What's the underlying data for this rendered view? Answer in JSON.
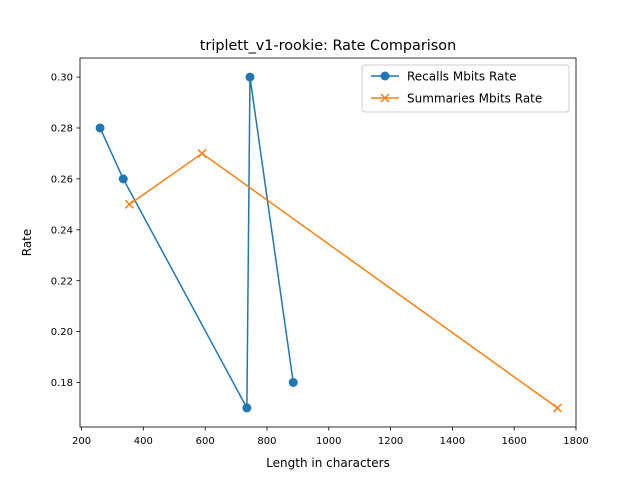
{
  "chart_data": {
    "type": "line",
    "title": "triplett_v1-rookie: Rate Comparison",
    "xlabel": "Length in characters",
    "ylabel": "Rate",
    "xlim": [
      195,
      1800
    ],
    "ylim": [
      0.1625,
      0.3075
    ],
    "xticks": [
      200,
      400,
      600,
      800,
      1000,
      1200,
      1400,
      1600,
      1800
    ],
    "yticks": [
      0.18,
      0.2,
      0.22,
      0.24,
      0.26,
      0.28,
      0.3
    ],
    "xtick_labels": [
      "200",
      "400",
      "600",
      "800",
      "1000",
      "1200",
      "1400",
      "1600",
      "1800"
    ],
    "ytick_labels": [
      "0.18",
      "0.20",
      "0.22",
      "0.24",
      "0.26",
      "0.28",
      "0.30"
    ],
    "grid": false,
    "legend_position": "upper-right",
    "series": [
      {
        "name": "Recalls Mbits Rate",
        "color": "#1f77b4",
        "marker": "circle",
        "x": [
          260,
          335,
          735,
          745,
          885
        ],
        "y": [
          0.28,
          0.26,
          0.17,
          0.3,
          0.18
        ]
      },
      {
        "name": "Summaries Mbits Rate",
        "color": "#ff7f0e",
        "marker": "x",
        "x": [
          355,
          590,
          1740
        ],
        "y": [
          0.25,
          0.27,
          0.17
        ]
      }
    ]
  }
}
